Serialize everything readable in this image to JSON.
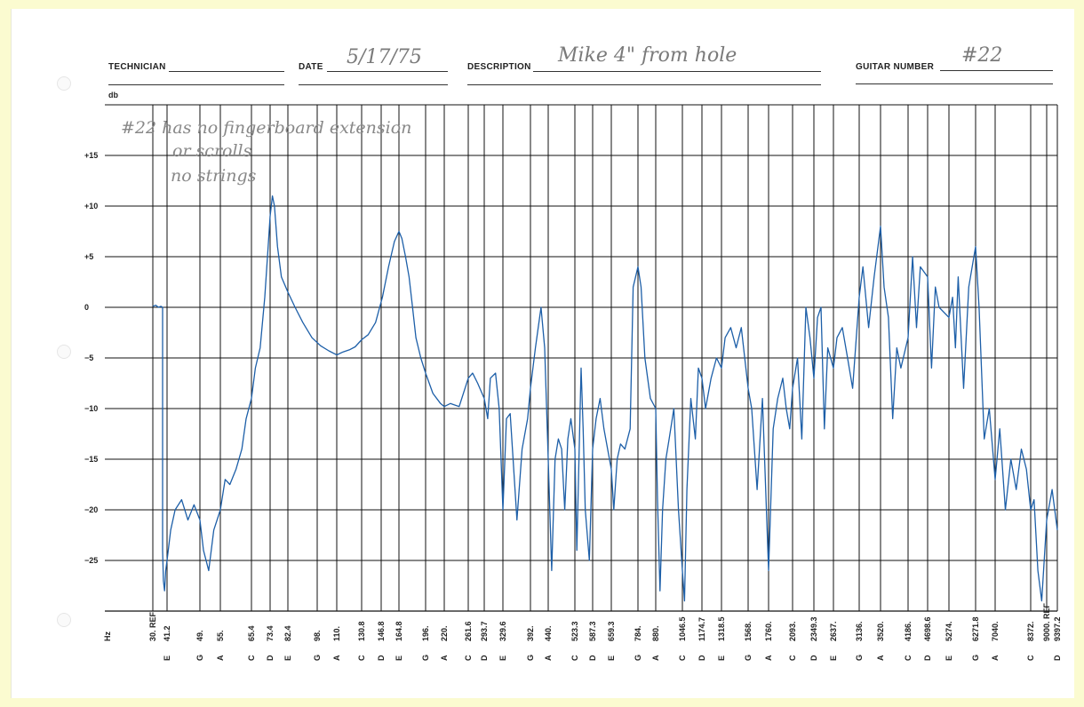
{
  "header": {
    "technician_label": "TECHNICIAN",
    "technician_value": "",
    "date_label": "DATE",
    "date_value": "5/17/75",
    "description_label": "DESCRIPTION",
    "description_value": "Mike 4\" from hole",
    "guitar_number_label": "GUITAR NUMBER",
    "guitar_number_value": "#22"
  },
  "notes": {
    "line1": "#22  has no fingerboard extension",
    "line2": "or scrolls",
    "line3": "no strings"
  },
  "colors": {
    "trace": "#1d5fa8",
    "grid": "#111111",
    "paper": "#ffffff",
    "frame": "#fbfbd0"
  },
  "chart_data": {
    "type": "line",
    "xlabel": "Hz",
    "ylabel": "db",
    "ylim": [
      -30,
      20
    ],
    "grid": true,
    "y_ticks": [
      "+15",
      "+10",
      "+5",
      "0",
      "−5",
      "−10",
      "−15",
      "−20",
      "−25"
    ],
    "y_tick_values": [
      15,
      10,
      5,
      0,
      -5,
      -10,
      -15,
      -20,
      -25
    ],
    "x_ticks": [
      {
        "freq": "30. REF",
        "note": ""
      },
      {
        "freq": "41.2",
        "note": "E"
      },
      {
        "freq": "49.",
        "note": "G"
      },
      {
        "freq": "55.",
        "note": "A"
      },
      {
        "freq": "65.4",
        "note": "C"
      },
      {
        "freq": "73.4",
        "note": "D"
      },
      {
        "freq": "82.4",
        "note": "E"
      },
      {
        "freq": "98.",
        "note": "G"
      },
      {
        "freq": "110.",
        "note": "A"
      },
      {
        "freq": "130.8",
        "note": "C"
      },
      {
        "freq": "146.8",
        "note": "D"
      },
      {
        "freq": "164.8",
        "note": "E"
      },
      {
        "freq": "196.",
        "note": "G"
      },
      {
        "freq": "220.",
        "note": "A"
      },
      {
        "freq": "261.6",
        "note": "C"
      },
      {
        "freq": "293.7",
        "note": "D"
      },
      {
        "freq": "329.6",
        "note": "E"
      },
      {
        "freq": "392.",
        "note": "G"
      },
      {
        "freq": "440.",
        "note": "A"
      },
      {
        "freq": "523.3",
        "note": "C"
      },
      {
        "freq": "587.3",
        "note": "D"
      },
      {
        "freq": "659.3",
        "note": "E"
      },
      {
        "freq": "784.",
        "note": "G"
      },
      {
        "freq": "880.",
        "note": "A"
      },
      {
        "freq": "1046.5",
        "note": "C"
      },
      {
        "freq": "1174.7",
        "note": "D"
      },
      {
        "freq": "1318.5",
        "note": "E"
      },
      {
        "freq": "1568.",
        "note": "G"
      },
      {
        "freq": "1760.",
        "note": "A"
      },
      {
        "freq": "2093.",
        "note": "C"
      },
      {
        "freq": "2349.3",
        "note": "D"
      },
      {
        "freq": "2637.",
        "note": "E"
      },
      {
        "freq": "3136.",
        "note": "G"
      },
      {
        "freq": "3520.",
        "note": "A"
      },
      {
        "freq": "4186.",
        "note": "C"
      },
      {
        "freq": "4698.6",
        "note": "D"
      },
      {
        "freq": "5274.",
        "note": "E"
      },
      {
        "freq": "6271.8",
        "note": "G"
      },
      {
        "freq": "7040.",
        "note": "A"
      },
      {
        "freq": "8372.",
        "note": "C"
      },
      {
        "freq": "9000. REF",
        "note": ""
      },
      {
        "freq": "9397.2",
        "note": "D"
      }
    ],
    "series": [
      {
        "values_hz_db": [
          [
            30,
            0.1
          ],
          [
            32,
            0.2
          ],
          [
            34,
            0.0
          ],
          [
            36,
            0.1
          ],
          [
            37.3,
            0.0
          ],
          [
            37.3,
            -24
          ],
          [
            38,
            -27
          ],
          [
            39,
            -28
          ],
          [
            40,
            -26
          ],
          [
            41.2,
            -25
          ],
          [
            42,
            -22
          ],
          [
            43,
            -20
          ],
          [
            44.5,
            -19
          ],
          [
            46,
            -21
          ],
          [
            47.5,
            -19.5
          ],
          [
            49,
            -21
          ],
          [
            50,
            -24
          ],
          [
            51.5,
            -26
          ],
          [
            53,
            -22
          ],
          [
            55,
            -20
          ],
          [
            56.5,
            -17
          ],
          [
            58,
            -17.5
          ],
          [
            60,
            -16
          ],
          [
            62,
            -14
          ],
          [
            63.5,
            -11
          ],
          [
            65.4,
            -9
          ],
          [
            67,
            -6
          ],
          [
            69,
            -4
          ],
          [
            71,
            1
          ],
          [
            72.5,
            6
          ],
          [
            73.4,
            9
          ],
          [
            74.5,
            11
          ],
          [
            75.5,
            10
          ],
          [
            77,
            6
          ],
          [
            79,
            3
          ],
          [
            82.4,
            1.5
          ],
          [
            86,
            0
          ],
          [
            90,
            -1.5
          ],
          [
            95,
            -3
          ],
          [
            100,
            -3.8
          ],
          [
            105,
            -4.3
          ],
          [
            110,
            -4.7
          ],
          [
            115,
            -4.4
          ],
          [
            120,
            -4.2
          ],
          [
            125,
            -3.9
          ],
          [
            130.8,
            -3.2
          ],
          [
            136,
            -2.7
          ],
          [
            142,
            -1.5
          ],
          [
            148,
            1
          ],
          [
            154,
            4
          ],
          [
            160,
            6.5
          ],
          [
            164.8,
            7.5
          ],
          [
            168,
            6.8
          ],
          [
            172,
            5
          ],
          [
            176,
            3
          ],
          [
            180,
            0
          ],
          [
            184,
            -3
          ],
          [
            190,
            -5
          ],
          [
            196,
            -6.5
          ],
          [
            205,
            -8.5
          ],
          [
            215,
            -9.5
          ],
          [
            220,
            -9.8
          ],
          [
            230,
            -9.5
          ],
          [
            245,
            -9.8
          ],
          [
            261.6,
            -7
          ],
          [
            270,
            -6.5
          ],
          [
            280,
            -7.5
          ],
          [
            293.7,
            -9
          ],
          [
            300,
            -11
          ],
          [
            305,
            -7
          ],
          [
            315,
            -6.5
          ],
          [
            322,
            -10
          ],
          [
            329.6,
            -20
          ],
          [
            337,
            -11
          ],
          [
            345,
            -10.5
          ],
          [
            360,
            -21
          ],
          [
            372,
            -14
          ],
          [
            385,
            -11
          ],
          [
            392,
            -8
          ],
          [
            405,
            -4
          ],
          [
            420,
            0
          ],
          [
            430,
            -4
          ],
          [
            440,
            -15
          ],
          [
            450,
            -26
          ],
          [
            460,
            -15
          ],
          [
            470,
            -13
          ],
          [
            480,
            -14
          ],
          [
            490,
            -20
          ],
          [
            500,
            -13
          ],
          [
            510,
            -11
          ],
          [
            523.3,
            -14
          ],
          [
            530,
            -24
          ],
          [
            545,
            -6
          ],
          [
            552,
            -12
          ],
          [
            560,
            -20
          ],
          [
            575,
            -25
          ],
          [
            587.3,
            -14
          ],
          [
            600,
            -11
          ],
          [
            615,
            -9
          ],
          [
            630,
            -12
          ],
          [
            659.3,
            -16
          ],
          [
            670,
            -20
          ],
          [
            685,
            -15
          ],
          [
            700,
            -13.5
          ],
          [
            720,
            -14
          ],
          [
            745,
            -12
          ],
          [
            760,
            2
          ],
          [
            784,
            4
          ],
          [
            800,
            2
          ],
          [
            820,
            -5
          ],
          [
            850,
            -9
          ],
          [
            880,
            -10
          ],
          [
            890,
            -19
          ],
          [
            905,
            -28
          ],
          [
            920,
            -20
          ],
          [
            940,
            -15
          ],
          [
            960,
            -13
          ],
          [
            990,
            -10
          ],
          [
            1020,
            -20
          ],
          [
            1046.5,
            -26
          ],
          [
            1060,
            -29
          ],
          [
            1075,
            -18
          ],
          [
            1100,
            -9
          ],
          [
            1130,
            -13
          ],
          [
            1150,
            -6
          ],
          [
            1174.7,
            -7
          ],
          [
            1200,
            -10
          ],
          [
            1240,
            -7
          ],
          [
            1280,
            -5
          ],
          [
            1318.5,
            -6
          ],
          [
            1350,
            -3
          ],
          [
            1400,
            -2
          ],
          [
            1450,
            -4
          ],
          [
            1500,
            -2
          ],
          [
            1568,
            -8
          ],
          [
            1600,
            -10
          ],
          [
            1650,
            -18
          ],
          [
            1700,
            -9
          ],
          [
            1760,
            -26
          ],
          [
            1820,
            -12
          ],
          [
            1880,
            -9
          ],
          [
            1950,
            -7
          ],
          [
            2000,
            -10
          ],
          [
            2050,
            -12
          ],
          [
            2093,
            -8
          ],
          [
            2150,
            -5
          ],
          [
            2200,
            -13
          ],
          [
            2250,
            0
          ],
          [
            2300,
            -3
          ],
          [
            2349.3,
            -7
          ],
          [
            2400,
            -1
          ],
          [
            2450,
            0
          ],
          [
            2500,
            -12
          ],
          [
            2550,
            -4
          ],
          [
            2637,
            -6
          ],
          [
            2700,
            -3
          ],
          [
            2800,
            -2
          ],
          [
            2900,
            -5
          ],
          [
            3000,
            -8
          ],
          [
            3136,
            1
          ],
          [
            3200,
            4
          ],
          [
            3300,
            -2
          ],
          [
            3400,
            3
          ],
          [
            3520,
            8
          ],
          [
            3600,
            2
          ],
          [
            3700,
            -1
          ],
          [
            3800,
            -11
          ],
          [
            3900,
            -4
          ],
          [
            4000,
            -6
          ],
          [
            4186,
            -3
          ],
          [
            4300,
            5
          ],
          [
            4400,
            -2
          ],
          [
            4500,
            4
          ],
          [
            4698.6,
            3
          ],
          [
            4800,
            -6
          ],
          [
            4900,
            2
          ],
          [
            5000,
            0
          ],
          [
            5274,
            -1
          ],
          [
            5400,
            1
          ],
          [
            5500,
            -4
          ],
          [
            5600,
            3
          ],
          [
            5800,
            -8
          ],
          [
            6000,
            2
          ],
          [
            6271.8,
            6
          ],
          [
            6400,
            0
          ],
          [
            6600,
            -13
          ],
          [
            6800,
            -10
          ],
          [
            7040,
            -17
          ],
          [
            7200,
            -12
          ],
          [
            7400,
            -20
          ],
          [
            7600,
            -15
          ],
          [
            7800,
            -18
          ],
          [
            8000,
            -14
          ],
          [
            8200,
            -16
          ],
          [
            8372,
            -20
          ],
          [
            8500,
            -19
          ],
          [
            8650,
            -26
          ],
          [
            8800,
            -29
          ],
          [
            9000,
            -21
          ],
          [
            9200,
            -18
          ],
          [
            9397.2,
            -22
          ]
        ]
      }
    ]
  }
}
